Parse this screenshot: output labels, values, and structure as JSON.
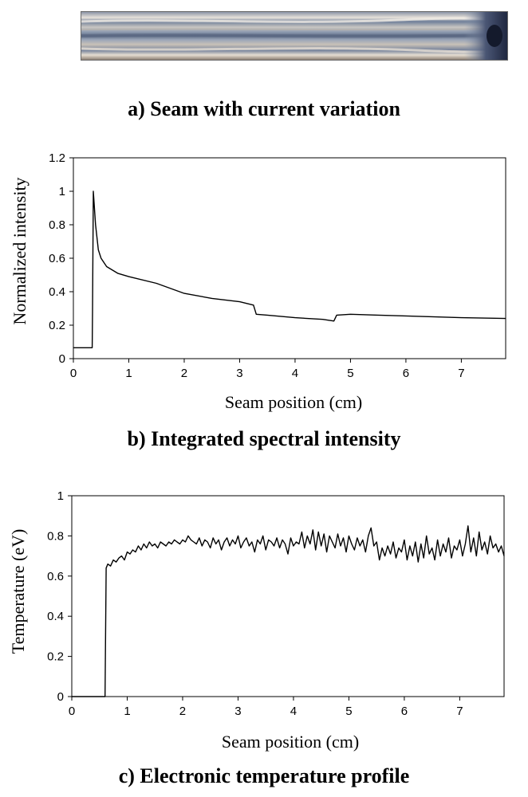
{
  "panel_a": {
    "caption": "a) Seam with current variation",
    "image_alt": "Photograph of weld seam"
  },
  "chart_data": [
    {
      "type": "line",
      "caption": "b) Integrated spectral intensity",
      "title": "",
      "xlabel": "Seam position (cm)",
      "ylabel": "Normalized intensity",
      "xlim": [
        0,
        7.8
      ],
      "ylim": [
        0,
        1.2
      ],
      "x_ticks": [
        0,
        1,
        2,
        3,
        4,
        5,
        6,
        7
      ],
      "y_ticks": [
        0,
        0.2,
        0.4,
        0.6,
        0.8,
        1,
        1.2
      ],
      "x_tick_labels": [
        "0",
        "1",
        "2",
        "3",
        "4",
        "5",
        "6",
        "7"
      ],
      "y_tick_labels": [
        "0",
        "0.2",
        "0.4",
        "0.6",
        "0.8",
        "1",
        "1.2"
      ],
      "grid": false,
      "series": [
        {
          "name": "Normalized intensity",
          "x": [
            0,
            0.34,
            0.345,
            0.36,
            0.4,
            0.45,
            0.5,
            0.6,
            0.8,
            1.0,
            1.5,
            2.0,
            2.5,
            3.0,
            3.25,
            3.3,
            3.5,
            4.0,
            4.5,
            4.7,
            4.75,
            5.0,
            5.5,
            6.0,
            7.0,
            7.8
          ],
          "values": [
            0.065,
            0.065,
            0.28,
            1.0,
            0.8,
            0.65,
            0.6,
            0.55,
            0.51,
            0.49,
            0.45,
            0.39,
            0.36,
            0.34,
            0.32,
            0.265,
            0.26,
            0.245,
            0.235,
            0.225,
            0.26,
            0.265,
            0.26,
            0.255,
            0.245,
            0.24
          ]
        }
      ]
    },
    {
      "type": "line",
      "caption": "c) Electronic temperature profile",
      "title": "",
      "xlabel": "Seam position (cm)",
      "ylabel": "Temperature (eV)",
      "xlim": [
        0,
        7.8
      ],
      "ylim": [
        0,
        1
      ],
      "x_ticks": [
        0,
        1,
        2,
        3,
        4,
        5,
        6,
        7
      ],
      "y_ticks": [
        0,
        0.2,
        0.4,
        0.6,
        0.8,
        1
      ],
      "x_tick_labels": [
        "0",
        "1",
        "2",
        "3",
        "4",
        "5",
        "6",
        "7"
      ],
      "y_tick_labels": [
        "0",
        "0.2",
        "0.4",
        "0.6",
        "0.8",
        "1"
      ],
      "grid": false,
      "series": [
        {
          "name": "Temperature",
          "x": [
            0,
            0.6,
            0.62,
            0.65,
            0.7,
            0.75,
            0.8,
            0.85,
            0.9,
            0.95,
            1.0,
            1.05,
            1.1,
            1.15,
            1.2,
            1.25,
            1.3,
            1.35,
            1.4,
            1.45,
            1.5,
            1.55,
            1.6,
            1.65,
            1.7,
            1.75,
            1.8,
            1.85,
            1.9,
            1.95,
            2.0,
            2.05,
            2.1,
            2.15,
            2.2,
            2.25,
            2.3,
            2.35,
            2.4,
            2.45,
            2.5,
            2.55,
            2.6,
            2.65,
            2.7,
            2.75,
            2.8,
            2.85,
            2.9,
            2.95,
            3.0,
            3.05,
            3.1,
            3.15,
            3.2,
            3.25,
            3.3,
            3.35,
            3.4,
            3.45,
            3.5,
            3.55,
            3.6,
            3.65,
            3.7,
            3.75,
            3.8,
            3.85,
            3.9,
            3.95,
            4.0,
            4.05,
            4.1,
            4.15,
            4.2,
            4.25,
            4.3,
            4.35,
            4.4,
            4.45,
            4.5,
            4.55,
            4.6,
            4.65,
            4.7,
            4.75,
            4.8,
            4.85,
            4.9,
            4.95,
            5.0,
            5.05,
            5.1,
            5.15,
            5.2,
            5.25,
            5.3,
            5.35,
            5.4,
            5.45,
            5.5,
            5.55,
            5.6,
            5.65,
            5.7,
            5.75,
            5.8,
            5.85,
            5.9,
            5.95,
            6.0,
            6.05,
            6.1,
            6.15,
            6.2,
            6.25,
            6.3,
            6.35,
            6.4,
            6.45,
            6.5,
            6.55,
            6.6,
            6.65,
            6.7,
            6.75,
            6.8,
            6.85,
            6.9,
            6.95,
            7.0,
            7.05,
            7.1,
            7.15,
            7.2,
            7.25,
            7.3,
            7.35,
            7.4,
            7.45,
            7.5,
            7.55,
            7.6,
            7.65,
            7.7,
            7.75,
            7.8
          ],
          "values": [
            0,
            0,
            0.64,
            0.66,
            0.65,
            0.68,
            0.67,
            0.69,
            0.7,
            0.68,
            0.72,
            0.71,
            0.73,
            0.72,
            0.75,
            0.73,
            0.76,
            0.74,
            0.77,
            0.75,
            0.76,
            0.74,
            0.77,
            0.76,
            0.75,
            0.77,
            0.76,
            0.78,
            0.77,
            0.76,
            0.78,
            0.77,
            0.8,
            0.78,
            0.77,
            0.76,
            0.79,
            0.75,
            0.78,
            0.77,
            0.74,
            0.79,
            0.76,
            0.78,
            0.73,
            0.77,
            0.79,
            0.75,
            0.78,
            0.76,
            0.8,
            0.74,
            0.77,
            0.79,
            0.75,
            0.77,
            0.72,
            0.78,
            0.76,
            0.8,
            0.73,
            0.78,
            0.77,
            0.75,
            0.79,
            0.74,
            0.78,
            0.76,
            0.71,
            0.79,
            0.75,
            0.77,
            0.76,
            0.82,
            0.74,
            0.8,
            0.76,
            0.83,
            0.73,
            0.82,
            0.75,
            0.81,
            0.72,
            0.8,
            0.77,
            0.74,
            0.81,
            0.75,
            0.79,
            0.72,
            0.8,
            0.76,
            0.73,
            0.79,
            0.75,
            0.78,
            0.72,
            0.8,
            0.84,
            0.75,
            0.77,
            0.68,
            0.74,
            0.7,
            0.75,
            0.71,
            0.77,
            0.69,
            0.74,
            0.72,
            0.78,
            0.68,
            0.75,
            0.7,
            0.77,
            0.67,
            0.76,
            0.69,
            0.8,
            0.71,
            0.74,
            0.68,
            0.78,
            0.7,
            0.76,
            0.72,
            0.79,
            0.69,
            0.75,
            0.73,
            0.78,
            0.7,
            0.76,
            0.85,
            0.72,
            0.79,
            0.7,
            0.82,
            0.73,
            0.77,
            0.71,
            0.8,
            0.74,
            0.76,
            0.72,
            0.75,
            0.7
          ]
        }
      ]
    }
  ]
}
